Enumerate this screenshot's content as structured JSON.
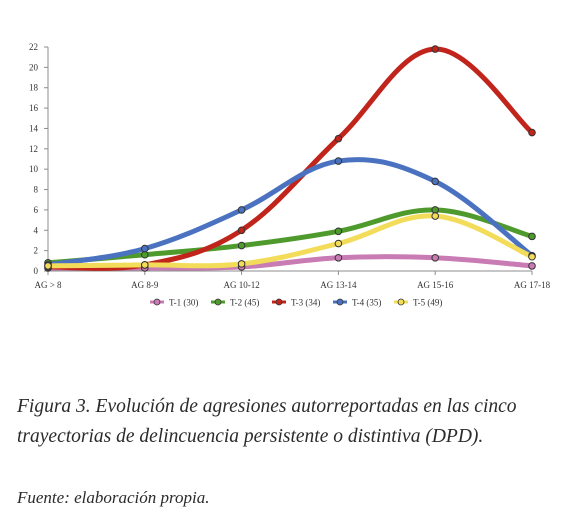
{
  "chart_data": {
    "type": "line",
    "categories": [
      "AG > 8",
      "AG 8-9",
      "AG 10-12",
      "AG 13-14",
      "AG 15-16",
      "AG 17-18"
    ],
    "ylim": [
      0,
      22
    ],
    "yticks": [
      0,
      2,
      4,
      6,
      8,
      10,
      12,
      14,
      16,
      18,
      20,
      22
    ],
    "grid": false,
    "legend_position": "bottom",
    "series": [
      {
        "name": "T-1 (30)",
        "color": "#c97bb3",
        "values": [
          0.3,
          0.3,
          0.4,
          1.3,
          1.3,
          0.5
        ]
      },
      {
        "name": "T-2 (45)",
        "color": "#4f9a2c",
        "values": [
          0.8,
          1.6,
          2.5,
          3.9,
          6.0,
          3.4
        ]
      },
      {
        "name": "T-3 (34)",
        "color": "#c0241a",
        "values": [
          0.4,
          0.6,
          4.0,
          13.0,
          21.8,
          13.6
        ]
      },
      {
        "name": "T-4 (35)",
        "color": "#4a72c0",
        "values": [
          0.6,
          2.2,
          6.0,
          10.8,
          8.8,
          1.5
        ]
      },
      {
        "name": "T-5 (49)",
        "color": "#f3dc5a",
        "values": [
          0.5,
          0.6,
          0.7,
          2.7,
          5.4,
          1.4
        ]
      }
    ]
  },
  "caption": "Figura 3. Evolución de agresiones autorreportadas en las cinco trayectorias de delincuencia persistente o distintiva (DPD).",
  "source": "Fuente: elaboración propia."
}
